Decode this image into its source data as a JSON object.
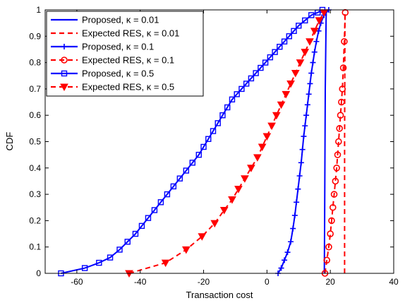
{
  "chart_data": {
    "type": "line",
    "title": "",
    "xlabel": "Transaction cost",
    "ylabel": "CDF",
    "xlim": [
      -70,
      40
    ],
    "ylim": [
      0,
      1
    ],
    "xticks": [
      -60,
      -40,
      -20,
      0,
      20,
      40
    ],
    "yticks": [
      0,
      0.1,
      0.2,
      0.3,
      0.4,
      0.5,
      0.6,
      0.7,
      0.8,
      0.9,
      1
    ],
    "grid": false,
    "legend_position": "top-left",
    "series": [
      {
        "name": "Proposed, κ = 0.01",
        "color": "#0000ff",
        "style": "solid",
        "marker": "none",
        "x": [
          18.1,
          18.2,
          18.3,
          18.4,
          18.6,
          18.7
        ],
        "y": [
          0.0,
          0.2,
          0.45,
          0.7,
          0.9,
          1.0
        ]
      },
      {
        "name": "Expected RES, κ = 0.01",
        "color": "#ff0000",
        "style": "dashed",
        "marker": "none",
        "x": [
          24.5,
          24.5,
          24.6,
          24.6
        ],
        "y": [
          0.0,
          0.5,
          0.9,
          1.0
        ]
      },
      {
        "name": "Proposed, κ = 0.1",
        "color": "#0000ff",
        "style": "solid",
        "marker": "plus",
        "x": [
          3.5,
          4.5,
          5.5,
          6.5,
          7.5,
          8.2,
          8.8,
          9.3,
          9.8,
          10.3,
          10.8,
          11.2,
          11.6,
          12.0,
          12.4,
          12.8,
          13.2,
          13.6,
          14.0,
          14.5,
          15.0,
          15.6,
          16.3,
          17.0,
          18.0,
          19.5
        ],
        "y": [
          0.0,
          0.02,
          0.05,
          0.08,
          0.12,
          0.17,
          0.22,
          0.27,
          0.32,
          0.37,
          0.42,
          0.47,
          0.52,
          0.56,
          0.6,
          0.64,
          0.68,
          0.72,
          0.76,
          0.8,
          0.84,
          0.88,
          0.92,
          0.95,
          0.98,
          1.0
        ]
      },
      {
        "name": "Expected RES, κ = 0.1",
        "color": "#ff0000",
        "style": "dashed",
        "marker": "circle",
        "x": [
          18.3,
          18.9,
          19.5,
          20.0,
          20.4,
          20.8,
          21.2,
          21.6,
          22.0,
          22.3,
          22.6,
          22.9,
          23.2,
          23.5,
          23.8,
          24.1,
          24.4,
          24.7
        ],
        "y": [
          0.0,
          0.05,
          0.1,
          0.15,
          0.2,
          0.25,
          0.3,
          0.35,
          0.4,
          0.45,
          0.5,
          0.55,
          0.6,
          0.65,
          0.7,
          0.78,
          0.88,
          0.99
        ]
      },
      {
        "name": "Proposed, κ = 0.5",
        "color": "#0000ff",
        "style": "solid",
        "marker": "square",
        "x": [
          -65,
          -57.5,
          -53,
          -49.5,
          -46.5,
          -44,
          -41.5,
          -39.5,
          -37.5,
          -35.5,
          -33.5,
          -31.5,
          -29.5,
          -27.5,
          -25.5,
          -23.5,
          -21.5,
          -20,
          -18.5,
          -17,
          -15.5,
          -14,
          -12.5,
          -11,
          -9.5,
          -8,
          -6.5,
          -5,
          -3.5,
          -2,
          -0.5,
          1,
          2.5,
          4,
          5.5,
          7,
          8.5,
          10,
          12,
          14,
          16,
          17.5
        ],
        "y": [
          0.0,
          0.02,
          0.04,
          0.06,
          0.09,
          0.12,
          0.15,
          0.18,
          0.21,
          0.24,
          0.27,
          0.3,
          0.33,
          0.36,
          0.39,
          0.42,
          0.45,
          0.48,
          0.51,
          0.54,
          0.57,
          0.6,
          0.63,
          0.66,
          0.68,
          0.7,
          0.72,
          0.74,
          0.76,
          0.78,
          0.8,
          0.82,
          0.84,
          0.86,
          0.88,
          0.9,
          0.92,
          0.94,
          0.96,
          0.98,
          0.99,
          1.0
        ]
      },
      {
        "name": "Expected RES, κ = 0.5",
        "color": "#ff0000",
        "style": "dashed",
        "marker": "triangle-down",
        "x": [
          -43.5,
          -32,
          -25.5,
          -20.5,
          -16.5,
          -13.5,
          -11,
          -9,
          -7,
          -5,
          -3,
          -1.5,
          0,
          1.5,
          3,
          4.5,
          6,
          7.5,
          9,
          10.5,
          12,
          13.5,
          15,
          16.5,
          18
        ],
        "y": [
          0.0,
          0.04,
          0.09,
          0.14,
          0.19,
          0.24,
          0.28,
          0.32,
          0.36,
          0.4,
          0.44,
          0.48,
          0.52,
          0.56,
          0.6,
          0.64,
          0.68,
          0.72,
          0.76,
          0.8,
          0.84,
          0.88,
          0.92,
          0.96,
          0.99
        ]
      }
    ]
  }
}
